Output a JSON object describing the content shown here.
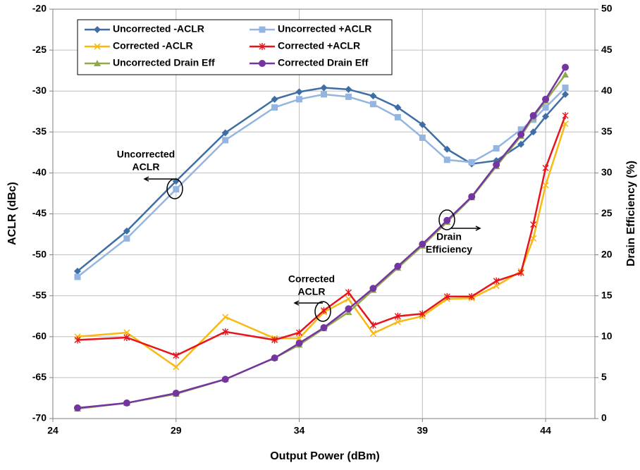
{
  "chart_data": {
    "type": "line",
    "x_label": "Output Power (dBm)",
    "y_label": "ACLR (dBc)",
    "y2_label": "Drain Efficiency (%)",
    "x": [
      25,
      27,
      29,
      31,
      33,
      34,
      35,
      36,
      37,
      38,
      39,
      40,
      41,
      42,
      43,
      43.5,
      44,
      44.8
    ],
    "xlim": [
      24,
      46
    ],
    "xticks": [
      24,
      29,
      34,
      39,
      44
    ],
    "ylim": [
      -70,
      -20
    ],
    "yticks": [
      -70,
      -65,
      -60,
      -55,
      -50,
      -45,
      -40,
      -35,
      -30,
      -25,
      -20
    ],
    "y2lim": [
      0,
      50
    ],
    "y2ticks": [
      0,
      5,
      10,
      15,
      20,
      25,
      30,
      35,
      40,
      45,
      50
    ],
    "grid": true,
    "legend": "top-left",
    "series": [
      {
        "name": "Uncorrected -ACLR",
        "color": "#3f6ea5",
        "marker": "diamond",
        "values": [
          -52,
          -47.1,
          -41,
          -35.1,
          -31,
          -30.1,
          -29.6,
          -29.8,
          -30.6,
          -32,
          -34.1,
          -37.1,
          -38.9,
          -38.5,
          -36.5,
          -35,
          -33.1,
          -30.4
        ]
      },
      {
        "name": "Uncorrected +ACLR",
        "color": "#94b5e0",
        "marker": "square",
        "values": [
          -52.7,
          -48,
          -42,
          -36,
          -32,
          -31,
          -30.4,
          -30.7,
          -31.6,
          -33.2,
          -35.7,
          -38.4,
          -38.7,
          -37,
          -34.7,
          -33.5,
          -32,
          -29.6
        ]
      },
      {
        "name": "Corrected -ACLR",
        "color": "#f8b912",
        "marker": "x",
        "values": [
          -60,
          -59.5,
          -63.7,
          -57.6,
          -60.2,
          -60.2,
          -57,
          -55.4,
          -59.6,
          -58.2,
          -57.5,
          -55.4,
          -55.3,
          -53.8,
          -52,
          -48,
          -41.5,
          -34
        ]
      },
      {
        "name": "Corrected +ACLR",
        "color": "#e8141b",
        "marker": "star",
        "values": [
          -60.4,
          -60.1,
          -62.3,
          -59.4,
          -60.4,
          -59.5,
          -56.8,
          -54.6,
          -58.6,
          -57.5,
          -57.2,
          -55.1,
          -55.1,
          -53.2,
          -52.2,
          -46.3,
          -39.4,
          -33
        ]
      },
      {
        "name": "Uncorrected Drain Eff",
        "color": "#8faa4e",
        "marker": "triangle",
        "axis": "y2",
        "values": [
          1.2,
          1.9,
          3,
          4.8,
          7.4,
          9,
          11,
          13,
          15.7,
          18.4,
          21.1,
          24,
          27,
          30.8,
          34.5,
          36.8,
          38.8,
          42
        ]
      },
      {
        "name": "Corrected Drain Eff",
        "color": "#7535a0",
        "marker": "circle",
        "axis": "y2",
        "values": [
          1.3,
          1.9,
          3.1,
          4.8,
          7.4,
          9.2,
          11.1,
          13.4,
          15.9,
          18.6,
          21.3,
          24.2,
          27.1,
          31,
          34.7,
          37,
          39,
          42.9
        ]
      }
    ],
    "annotations": [
      {
        "lines": [
          "Uncorrected",
          "ACLR"
        ]
      },
      {
        "lines": [
          "Drain",
          "Efficiency"
        ]
      },
      {
        "lines": [
          "Corrected",
          "ACLR"
        ]
      }
    ]
  }
}
